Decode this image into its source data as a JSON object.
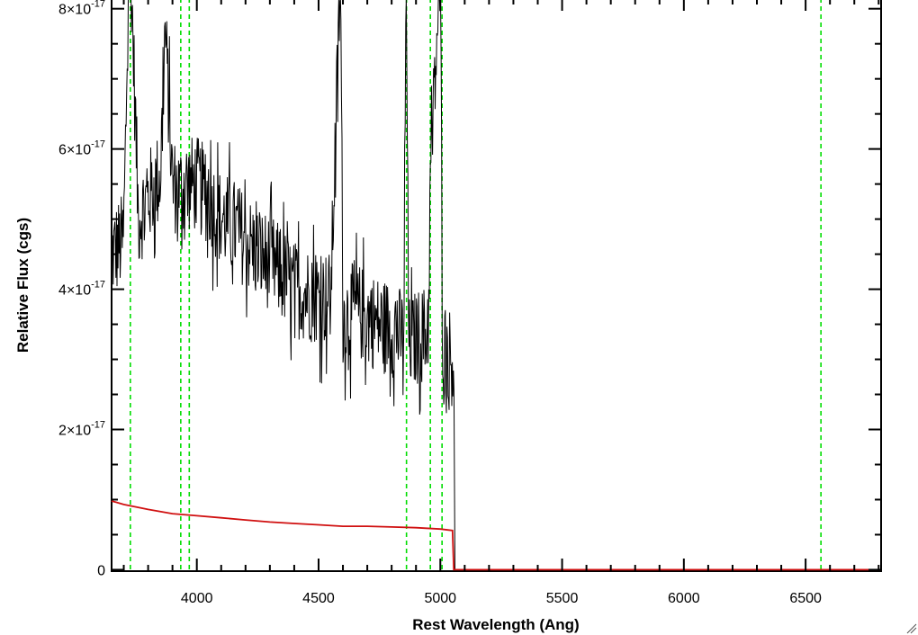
{
  "chart_data": {
    "type": "line",
    "title": "",
    "xlabel": "Rest Wavelength (Ang)",
    "ylabel": "Relative Flux (cgs)",
    "xlim": [
      3650,
      6810
    ],
    "ylim": [
      -2e-19,
      8.15e-17
    ],
    "x_ticks": [
      4000,
      4500,
      5000,
      5500,
      6000,
      6500
    ],
    "x_tick_labels": [
      "4000",
      "4500",
      "5000",
      "5500",
      "6000",
      "6500"
    ],
    "y_ticks": [
      {
        "value": 0,
        "mantissa": "0",
        "times": "",
        "exponent": ""
      },
      {
        "value": 2e-17,
        "mantissa": "2",
        "times": "×10",
        "exponent": "-17"
      },
      {
        "value": 4e-17,
        "mantissa": "4",
        "times": "×10",
        "exponent": "-17"
      },
      {
        "value": 6e-17,
        "mantissa": "6",
        "times": "×10",
        "exponent": "-17"
      },
      {
        "value": 8e-17,
        "mantissa": "8",
        "times": "×10",
        "exponent": "-17"
      }
    ],
    "grid": false,
    "series": [
      {
        "color": "#000000",
        "style": "noisy-spectrum",
        "x": [
          3650,
          3700,
          3720,
          3730,
          3760,
          3800,
          3850,
          3870,
          3900,
          3930,
          3950,
          4000,
          4050,
          4100,
          4150,
          4200,
          4250,
          4300,
          4350,
          4400,
          4450,
          4500,
          4550,
          4590,
          4600,
          4650,
          4700,
          4750,
          4800,
          4850,
          4860,
          4870,
          4900,
          4950,
          4960,
          5000,
          5010,
          5030,
          5050,
          5057,
          5060,
          6810
        ],
        "y": [
          4.5e-17,
          4.7e-17,
          8.5e-17,
          8.5e-17,
          5e-17,
          5.3e-17,
          5.6e-17,
          7.7e-17,
          5.5e-17,
          5.4e-17,
          5.5e-17,
          5.5e-17,
          5.3e-17,
          5e-17,
          4.9e-17,
          4.7e-17,
          4.5e-17,
          4.4e-17,
          4.2e-17,
          4e-17,
          3.95e-17,
          3.9e-17,
          3.85e-17,
          8.5e-17,
          3.6e-17,
          3.7e-17,
          3.6e-17,
          3.5e-17,
          3.45e-17,
          3.3e-17,
          8.5e-17,
          3.2e-17,
          3.3e-17,
          3.4e-17,
          5.7e-17,
          8.5e-17,
          3.2e-17,
          3.1e-17,
          3e-17,
          3e-17,
          0,
          0
        ]
      },
      {
        "color": "#d01010",
        "style": "model-continuum",
        "x": [
          3650,
          3700,
          3800,
          3900,
          4000,
          4100,
          4200,
          4300,
          4400,
          4500,
          4600,
          4700,
          4800,
          4900,
          5000,
          5050,
          5055,
          5060,
          6810
        ],
        "y": [
          9.8e-18,
          9.3e-18,
          8.6e-18,
          8e-18,
          7.7e-18,
          7.4e-18,
          7.1e-18,
          6.8e-18,
          6.6e-18,
          6.4e-18,
          6.2e-18,
          6.2e-18,
          6.1e-18,
          6e-18,
          5.8e-18,
          5.6e-18,
          0,
          0,
          0
        ]
      }
    ],
    "vertical_lines": {
      "color": "#00dd00",
      "style": "dashed",
      "x": [
        3727,
        3934,
        3969,
        4861,
        4959,
        5007,
        6563
      ]
    }
  }
}
